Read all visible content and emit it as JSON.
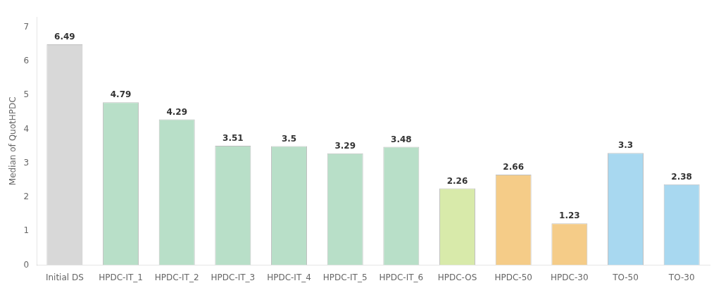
{
  "chart_data": {
    "type": "bar",
    "categories": [
      "Initial DS",
      "HPDC-IT_1",
      "HPDC-IT_2",
      "HPDC-IT_3",
      "HPDC-IT_4",
      "HPDC-IT_5",
      "HPDC-IT_6",
      "HPDC-OS",
      "HPDC-50",
      "HPDC-30",
      "TO-50",
      "TO-30"
    ],
    "values": [
      6.49,
      4.79,
      4.29,
      3.51,
      3.5,
      3.29,
      3.48,
      2.26,
      2.66,
      1.23,
      3.3,
      2.38
    ],
    "colors": [
      "#d8d8d8",
      "#b8dfc8",
      "#b8dfc8",
      "#b8dfc8",
      "#b8dfc8",
      "#b8dfc8",
      "#b8dfc8",
      "#d8eaaa",
      "#f5cc88",
      "#f5cc88",
      "#a8d8f0",
      "#a8d8f0"
    ],
    "ylabel": "Median of QuotHPDC",
    "ylim": [
      0,
      7.3
    ],
    "yticks": [
      0,
      1,
      2,
      3,
      4,
      5,
      6,
      7
    ],
    "grid": false,
    "data_labels": true
  }
}
